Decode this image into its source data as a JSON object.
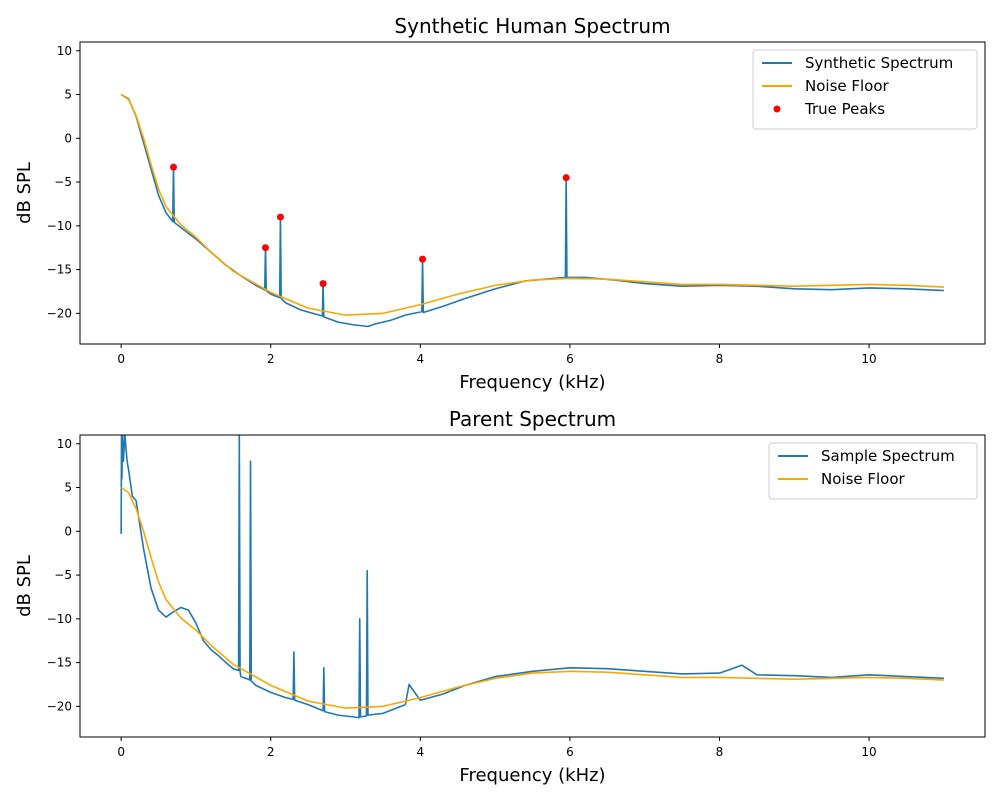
{
  "chart_data": [
    {
      "type": "line",
      "title": "Synthetic Human Spectrum",
      "xlabel": "Frequency (kHz)",
      "ylabel": "dB SPL",
      "xlim": [
        -0.55,
        11.55
      ],
      "ylim": [
        -23.5,
        11
      ],
      "xticks": [
        0,
        2,
        4,
        6,
        8,
        10
      ],
      "yticks": [
        -20,
        -15,
        -10,
        -5,
        0,
        5,
        10
      ],
      "grid": false,
      "legend_position": "top-right",
      "series": [
        {
          "name": "Synthetic Spectrum",
          "kind": "line",
          "color": "#1f77b4",
          "x": [
            0,
            0.1,
            0.2,
            0.3,
            0.4,
            0.5,
            0.6,
            0.69,
            0.7,
            0.71,
            0.8,
            1.0,
            1.2,
            1.4,
            1.6,
            1.8,
            1.92,
            1.93,
            1.94,
            2.0,
            2.12,
            2.13,
            2.14,
            2.2,
            2.4,
            2.69,
            2.7,
            2.71,
            2.9,
            3.1,
            3.3,
            3.4,
            3.6,
            3.8,
            4.02,
            4.03,
            4.04,
            4.3,
            4.6,
            5.0,
            5.4,
            5.8,
            5.94,
            5.95,
            5.96,
            6.2,
            6.6,
            7.0,
            7.5,
            8.0,
            8.5,
            9.0,
            9.5,
            10.0,
            10.5,
            11.0
          ],
          "y": [
            5,
            4.5,
            2.5,
            -0.5,
            -3.5,
            -6.5,
            -8.5,
            -9.5,
            -3.3,
            -9.6,
            -10.2,
            -11.5,
            -13.0,
            -14.5,
            -15.7,
            -16.8,
            -17.3,
            -12.5,
            -17.4,
            -17.8,
            -18.2,
            -9.0,
            -18.3,
            -18.8,
            -19.6,
            -20.3,
            -16.6,
            -20.4,
            -21.0,
            -21.3,
            -21.5,
            -21.2,
            -20.8,
            -20.2,
            -19.8,
            -13.8,
            -19.9,
            -19.2,
            -18.3,
            -17.2,
            -16.3,
            -16.0,
            -15.9,
            -4.5,
            -15.9,
            -15.9,
            -16.2,
            -16.6,
            -16.9,
            -16.8,
            -16.9,
            -17.2,
            -17.3,
            -17.1,
            -17.2,
            -17.4
          ]
        },
        {
          "name": "Noise Floor",
          "kind": "line",
          "color": "#ffa500",
          "x": [
            0,
            0.1,
            0.2,
            0.3,
            0.4,
            0.5,
            0.6,
            0.8,
            1.0,
            1.2,
            1.5,
            2.0,
            2.5,
            3.0,
            3.5,
            4.0,
            4.5,
            5.0,
            5.5,
            6.0,
            6.5,
            7.0,
            7.5,
            8.0,
            8.5,
            9.0,
            9.5,
            10.0,
            10.5,
            11.0
          ],
          "y": [
            5,
            4.4,
            2.6,
            0,
            -3.0,
            -5.8,
            -7.8,
            -9.9,
            -11.3,
            -13.0,
            -15.2,
            -17.6,
            -19.4,
            -20.2,
            -20.0,
            -19.0,
            -17.8,
            -16.8,
            -16.2,
            -16.0,
            -16.1,
            -16.4,
            -16.7,
            -16.7,
            -16.8,
            -16.9,
            -16.8,
            -16.7,
            -16.8,
            -17.0
          ]
        },
        {
          "name": "True Peaks",
          "kind": "scatter",
          "color": "#ff0000",
          "x": [
            0.7,
            1.93,
            2.13,
            2.7,
            4.03,
            5.95
          ],
          "y": [
            -3.3,
            -12.5,
            -9.0,
            -16.6,
            -13.8,
            -4.5
          ]
        }
      ]
    },
    {
      "type": "line",
      "title": "Parent Spectrum",
      "xlabel": "Frequency (kHz)",
      "ylabel": "dB SPL",
      "xlim": [
        -0.55,
        11.55
      ],
      "ylim": [
        -23.5,
        11
      ],
      "xticks": [
        0,
        2,
        4,
        6,
        8,
        10
      ],
      "yticks": [
        -20,
        -15,
        -10,
        -5,
        0,
        5,
        10
      ],
      "grid": false,
      "legend_position": "top-right",
      "series": [
        {
          "name": "Sample Spectrum",
          "kind": "line",
          "color": "#1f77b4",
          "x": [
            0,
            0.005,
            0.01,
            0.02,
            0.03,
            0.05,
            0.08,
            0.1,
            0.15,
            0.2,
            0.3,
            0.4,
            0.5,
            0.6,
            0.7,
            0.8,
            0.9,
            1.0,
            1.1,
            1.2,
            1.3,
            1.4,
            1.5,
            1.57,
            1.58,
            1.59,
            1.6,
            1.7,
            1.72,
            1.73,
            1.74,
            1.8,
            2.0,
            2.2,
            2.3,
            2.31,
            2.32,
            2.5,
            2.7,
            2.71,
            2.72,
            2.9,
            3.1,
            3.18,
            3.19,
            3.2,
            3.28,
            3.29,
            3.3,
            3.5,
            3.8,
            3.85,
            4.0,
            4.3,
            4.6,
            5.0,
            5.5,
            6.0,
            6.5,
            7.0,
            7.5,
            8.0,
            8.3,
            8.5,
            9.0,
            9.5,
            10.0,
            10.5,
            11.0
          ],
          "y": [
            -0.3,
            11,
            6,
            11,
            8,
            11,
            8,
            7,
            4,
            3.5,
            -2.0,
            -6.5,
            -9.0,
            -9.8,
            -9.2,
            -8.7,
            -9.0,
            -10.5,
            -12.5,
            -13.5,
            -14.2,
            -15.0,
            -15.7,
            -15.9,
            11,
            -16.0,
            -16.6,
            -16.9,
            -17.0,
            8,
            -17.1,
            -17.6,
            -18.4,
            -19.0,
            -19.2,
            -13.8,
            -19.3,
            -19.8,
            -20.5,
            -15.6,
            -20.6,
            -21.0,
            -21.2,
            -21.3,
            -10.0,
            -21.2,
            -21.1,
            -4.5,
            -21.0,
            -20.8,
            -19.8,
            -17.5,
            -19.3,
            -18.6,
            -17.6,
            -16.6,
            -16.0,
            -15.6,
            -15.7,
            -16.0,
            -16.3,
            -16.2,
            -15.3,
            -16.4,
            -16.5,
            -16.7,
            -16.4,
            -16.6,
            -16.8
          ]
        },
        {
          "name": "Noise Floor",
          "kind": "line",
          "color": "#ffa500",
          "x": [
            0,
            0.1,
            0.2,
            0.3,
            0.4,
            0.5,
            0.6,
            0.8,
            1.0,
            1.2,
            1.5,
            2.0,
            2.5,
            3.0,
            3.5,
            4.0,
            4.5,
            5.0,
            5.5,
            6.0,
            6.5,
            7.0,
            7.5,
            8.0,
            8.5,
            9.0,
            9.5,
            10.0,
            10.5,
            11.0
          ],
          "y": [
            5,
            4.4,
            2.6,
            0,
            -3.0,
            -5.8,
            -7.8,
            -9.9,
            -11.3,
            -13.0,
            -15.2,
            -17.6,
            -19.4,
            -20.2,
            -20.0,
            -19.0,
            -17.8,
            -16.8,
            -16.2,
            -16.0,
            -16.1,
            -16.4,
            -16.7,
            -16.7,
            -16.8,
            -16.9,
            -16.8,
            -16.7,
            -16.8,
            -17.0
          ]
        }
      ]
    }
  ]
}
